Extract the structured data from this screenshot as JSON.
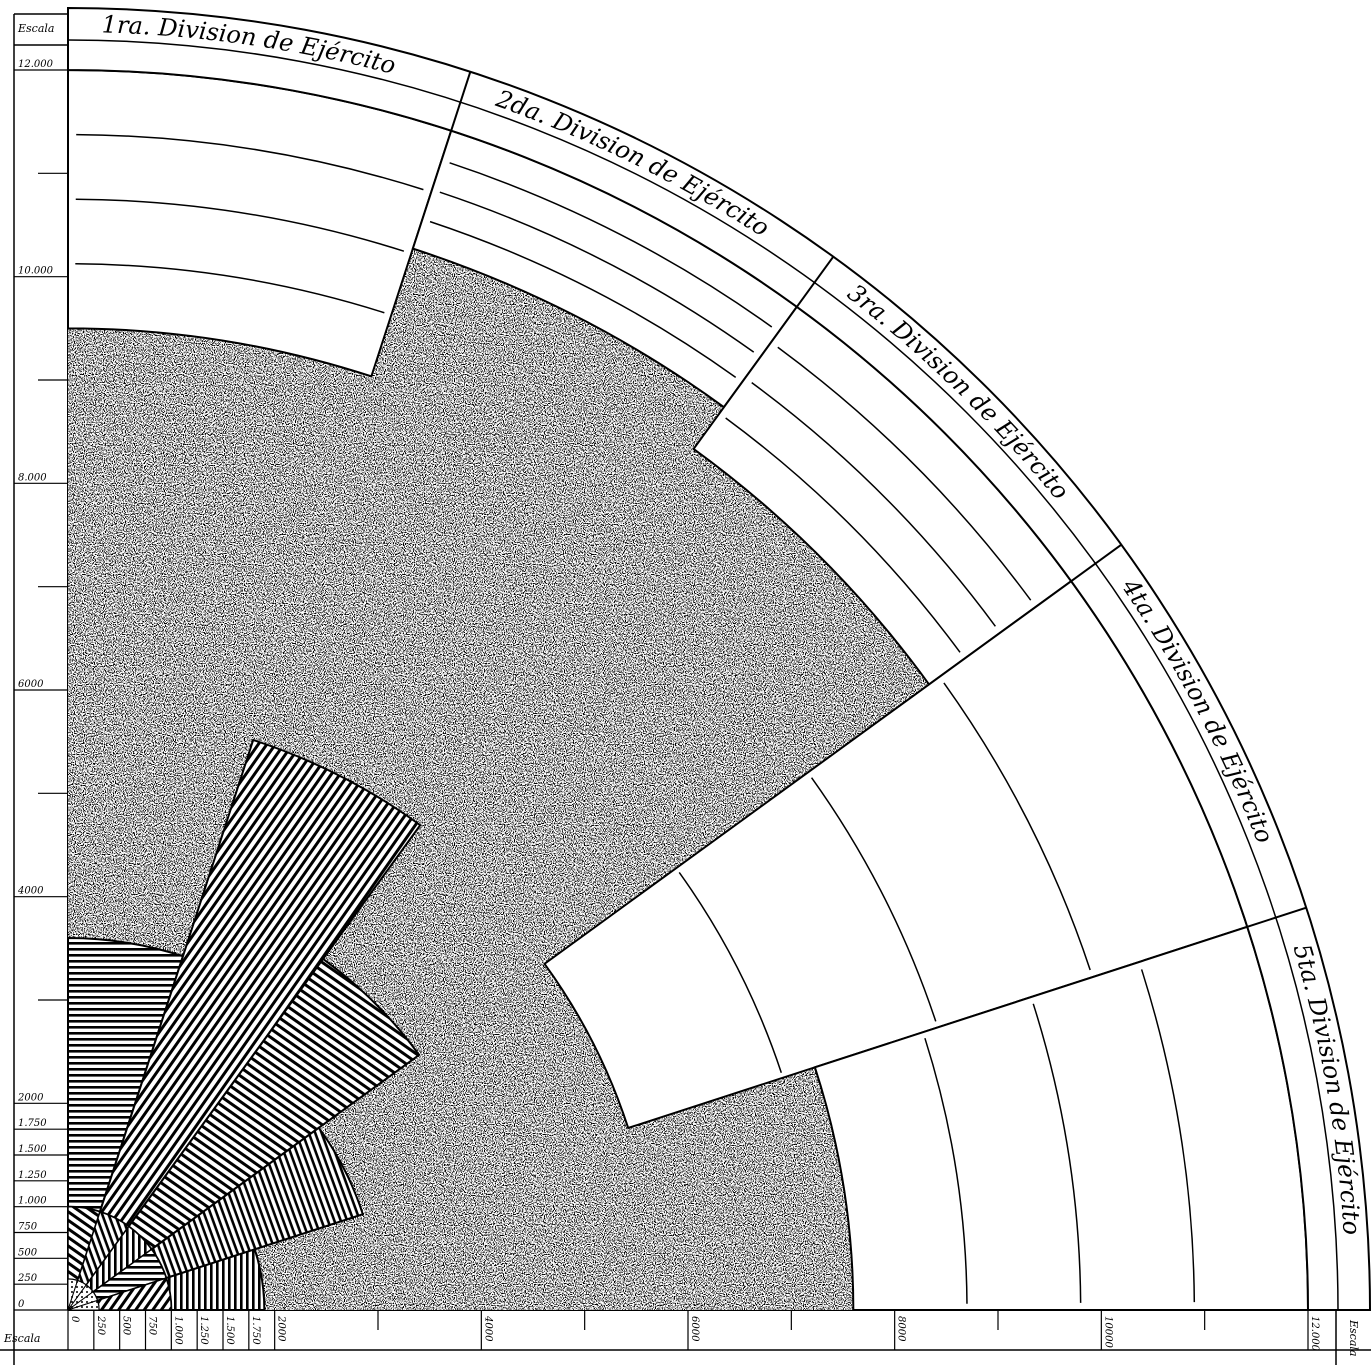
{
  "scale": {
    "label": "Escala",
    "max": 12000,
    "left_ticks": [
      {
        "value": 0,
        "label": "0"
      },
      {
        "value": 250,
        "label": "250"
      },
      {
        "value": 500,
        "label": "500"
      },
      {
        "value": 750,
        "label": "750"
      },
      {
        "value": 1000,
        "label": "1.000"
      },
      {
        "value": 1250,
        "label": "1.250"
      },
      {
        "value": 1500,
        "label": "1.500"
      },
      {
        "value": 1750,
        "label": "1.750"
      },
      {
        "value": 2000,
        "label": "2000"
      },
      {
        "value": 4000,
        "label": "4000"
      },
      {
        "value": 6000,
        "label": "6000"
      },
      {
        "value": 8000,
        "label": "8.000"
      },
      {
        "value": 10000,
        "label": "10.000"
      },
      {
        "value": 12000,
        "label": "12.000"
      }
    ],
    "bottom_ticks": [
      {
        "value": 0,
        "label": "0"
      },
      {
        "value": 250,
        "label": "250"
      },
      {
        "value": 500,
        "label": "500"
      },
      {
        "value": 750,
        "label": "750"
      },
      {
        "value": 1000,
        "label": "1.000"
      },
      {
        "value": 1250,
        "label": "1.250"
      },
      {
        "value": 1500,
        "label": "1.500"
      },
      {
        "value": 1750,
        "label": "1.750"
      },
      {
        "value": 2000,
        "label": "2000"
      },
      {
        "value": 4000,
        "label": "4000"
      },
      {
        "value": 6000,
        "label": "6000"
      },
      {
        "value": 8000,
        "label": "8000"
      },
      {
        "value": 10000,
        "label": "10000"
      },
      {
        "value": 12000,
        "label": "12.000"
      }
    ],
    "minor_tick_values": [
      3000,
      5000,
      7000,
      9000,
      11000
    ]
  },
  "divisions": [
    {
      "label": "1ra. Division de Ejército",
      "value": 9500
    },
    {
      "label": "2da. Division de Ejército",
      "value": 10800
    },
    {
      "label": "3ra. Division de Ejército",
      "value": 10300
    },
    {
      "label": "4ta. Division de Ejército",
      "value": 5700
    },
    {
      "label": "5ta. Division de Ejército",
      "value": 7600
    }
  ],
  "colors": {
    "ink": "#000000",
    "paper": "#ffffff"
  }
}
